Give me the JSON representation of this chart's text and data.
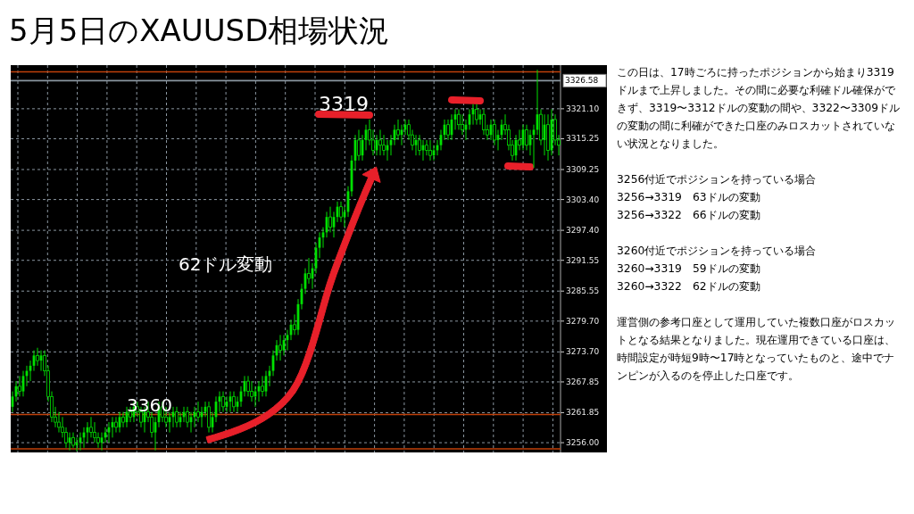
{
  "chart_data": {
    "type": "candlestick",
    "title": "5月5日のXAUUSD相場状況",
    "categories": [
      null,
      null,
      null,
      null,
      null,
      null,
      null,
      null,
      null,
      null,
      null,
      null,
      null,
      null,
      null,
      null,
      null,
      null,
      null,
      null,
      null,
      null,
      null,
      null,
      null,
      null,
      null,
      null,
      null,
      null,
      null,
      null,
      null,
      null,
      null,
      null,
      null,
      null,
      null,
      null,
      null,
      null,
      null,
      null,
      null,
      null,
      null,
      null,
      null,
      null,
      null,
      null,
      null,
      null,
      null,
      null,
      null,
      null,
      null,
      null,
      null,
      null,
      null,
      null,
      null,
      null,
      null,
      null,
      null,
      null,
      null,
      null,
      null,
      null,
      null,
      null,
      null,
      null,
      null,
      null,
      null,
      null,
      null,
      null,
      null,
      null,
      null,
      null,
      null,
      null,
      null,
      null,
      null,
      null,
      null,
      null,
      null,
      null,
      null,
      null,
      null,
      null,
      null,
      null,
      null,
      null,
      null,
      null,
      null,
      null,
      null,
      null,
      null,
      null,
      null,
      null,
      null,
      null,
      null,
      null,
      null,
      null,
      null,
      null,
      null,
      null,
      null,
      null,
      null,
      null,
      null,
      null,
      null,
      null,
      null,
      null,
      null,
      null,
      null,
      null,
      null,
      null,
      null,
      null,
      null,
      null,
      null,
      null,
      null,
      null,
      null,
      null,
      null,
      null
    ],
    "color": "#00e000",
    "ohlc": [
      [
        3263,
        3266,
        3262,
        3265
      ],
      [
        3265,
        3268,
        3264,
        3267
      ],
      [
        3267,
        3269,
        3265,
        3266
      ],
      [
        3266,
        3270,
        3265,
        3269
      ],
      [
        3269,
        3271,
        3267,
        3270
      ],
      [
        3270,
        3272,
        3268,
        3271
      ],
      [
        3271,
        3274,
        3270,
        3273
      ],
      [
        3273,
        3274.5,
        3271,
        3272
      ],
      [
        3272,
        3274,
        3270,
        3273
      ],
      [
        3273,
        3274,
        3269,
        3270
      ],
      [
        3270,
        3271,
        3264,
        3265
      ],
      [
        3265,
        3266,
        3260,
        3261
      ],
      [
        3261,
        3263,
        3259,
        3260
      ],
      [
        3260,
        3262,
        3258,
        3259
      ],
      [
        3259,
        3261,
        3257,
        3258
      ],
      [
        3258,
        3259,
        3255,
        3256
      ],
      [
        3256,
        3258,
        3254.5,
        3257
      ],
      [
        3257,
        3258,
        3255,
        3255.5
      ],
      [
        3255.5,
        3257,
        3254.3,
        3256
      ],
      [
        3256,
        3258,
        3254.5,
        3257
      ],
      [
        3257,
        3259,
        3255,
        3258
      ],
      [
        3258,
        3260,
        3256,
        3259
      ],
      [
        3259,
        3261,
        3257,
        3258
      ],
      [
        3258,
        3260,
        3256,
        3257
      ],
      [
        3257,
        3258,
        3255,
        3256
      ],
      [
        3256,
        3258,
        3254.5,
        3257
      ],
      [
        3257,
        3259,
        3256,
        3258
      ],
      [
        3258,
        3260,
        3256,
        3259
      ],
      [
        3259,
        3261,
        3257,
        3260
      ],
      [
        3260,
        3261,
        3258,
        3259
      ],
      [
        3259,
        3262,
        3258,
        3261
      ],
      [
        3261,
        3262,
        3259,
        3260
      ],
      [
        3260,
        3263,
        3259,
        3262
      ],
      [
        3262,
        3263,
        3260,
        3261
      ],
      [
        3261,
        3264,
        3260,
        3263
      ],
      [
        3263,
        3264,
        3261,
        3262
      ],
      [
        3262,
        3263,
        3259,
        3260
      ],
      [
        3260,
        3263,
        3258,
        3262
      ],
      [
        3262,
        3264,
        3260,
        3261
      ],
      [
        3261,
        3262,
        3257,
        3258
      ],
      [
        3258,
        3261,
        3254.5,
        3260
      ],
      [
        3260,
        3264,
        3259,
        3263
      ],
      [
        3263,
        3264,
        3260,
        3261
      ],
      [
        3261,
        3263,
        3259,
        3260
      ],
      [
        3260,
        3262,
        3258,
        3261
      ],
      [
        3261,
        3263,
        3259,
        3262
      ],
      [
        3262,
        3263,
        3259,
        3260
      ],
      [
        3260,
        3262,
        3259,
        3261
      ],
      [
        3261,
        3263,
        3260,
        3262
      ],
      [
        3262,
        3263,
        3259,
        3260
      ],
      [
        3260,
        3262,
        3258,
        3261
      ],
      [
        3261,
        3263,
        3259,
        3262
      ],
      [
        3262,
        3264,
        3260,
        3261
      ],
      [
        3261,
        3263,
        3259,
        3262
      ],
      [
        3262,
        3264,
        3261,
        3263
      ],
      [
        3263,
        3264,
        3258,
        3259
      ],
      [
        3259,
        3262,
        3258,
        3261
      ],
      [
        3261,
        3265,
        3260,
        3264
      ],
      [
        3264,
        3266,
        3262,
        3265
      ],
      [
        3265,
        3266,
        3262,
        3263
      ],
      [
        3263,
        3265,
        3262,
        3264
      ],
      [
        3264,
        3266,
        3262,
        3265
      ],
      [
        3265,
        3266,
        3262,
        3263
      ],
      [
        3263,
        3265,
        3262,
        3264
      ],
      [
        3264,
        3267,
        3263,
        3266
      ],
      [
        3266,
        3269,
        3265,
        3268
      ],
      [
        3268,
        3269,
        3265,
        3266
      ],
      [
        3266,
        3268,
        3264,
        3265
      ],
      [
        3265,
        3267,
        3263,
        3266
      ],
      [
        3266,
        3268,
        3264,
        3267
      ],
      [
        3267,
        3269,
        3265,
        3266
      ],
      [
        3266,
        3270,
        3265,
        3269
      ],
      [
        3269,
        3271,
        3267,
        3270
      ],
      [
        3270,
        3274,
        3269,
        3273
      ],
      [
        3273,
        3276,
        3272,
        3275
      ],
      [
        3275,
        3277,
        3272,
        3274
      ],
      [
        3274,
        3277,
        3273,
        3276
      ],
      [
        3276,
        3278,
        3274,
        3277
      ],
      [
        3277,
        3280,
        3276,
        3279
      ],
      [
        3279,
        3281,
        3277,
        3278
      ],
      [
        3278,
        3284,
        3277,
        3283
      ],
      [
        3283,
        3287,
        3282,
        3286
      ],
      [
        3286,
        3290,
        3285,
        3289
      ],
      [
        3289,
        3292,
        3287,
        3288
      ],
      [
        3288,
        3291,
        3286,
        3290
      ],
      [
        3290,
        3295,
        3289,
        3294
      ],
      [
        3294,
        3297,
        3292,
        3296
      ],
      [
        3296,
        3298,
        3294,
        3297
      ],
      [
        3297,
        3301,
        3296,
        3300
      ],
      [
        3300,
        3302,
        3297,
        3298
      ],
      [
        3298,
        3301,
        3296,
        3300
      ],
      [
        3300,
        3303,
        3299,
        3302
      ],
      [
        3302,
        3303,
        3299,
        3300
      ],
      [
        3300,
        3302,
        3298,
        3301
      ],
      [
        3301,
        3306,
        3300,
        3305
      ],
      [
        3305,
        3312,
        3304,
        3311
      ],
      [
        3311,
        3316,
        3309,
        3315
      ],
      [
        3315,
        3317,
        3311,
        3312
      ],
      [
        3312,
        3316,
        3311,
        3315
      ],
      [
        3315,
        3318,
        3313,
        3317
      ],
      [
        3317,
        3319,
        3314,
        3315
      ],
      [
        3315,
        3317,
        3312,
        3313
      ],
      [
        3313,
        3316,
        3312,
        3315
      ],
      [
        3315,
        3317,
        3312,
        3314
      ],
      [
        3314,
        3316,
        3312,
        3313
      ],
      [
        3313,
        3315,
        3311,
        3314
      ],
      [
        3314,
        3316,
        3312,
        3315
      ],
      [
        3315,
        3318,
        3314,
        3317
      ],
      [
        3317,
        3319,
        3315,
        3316
      ],
      [
        3316,
        3318,
        3314,
        3317
      ],
      [
        3317,
        3319,
        3316,
        3318
      ],
      [
        3318,
        3319,
        3315,
        3316
      ],
      [
        3316,
        3317,
        3313,
        3314
      ],
      [
        3314,
        3316,
        3312,
        3315
      ],
      [
        3315,
        3316,
        3312,
        3313
      ],
      [
        3313,
        3315,
        3311,
        3314
      ],
      [
        3314,
        3315,
        3312,
        3313
      ],
      [
        3313,
        3315,
        3311,
        3312
      ],
      [
        3312,
        3314,
        3311,
        3313
      ],
      [
        3313,
        3315,
        3312,
        3314
      ],
      [
        3314,
        3317,
        3313,
        3316
      ],
      [
        3316,
        3319,
        3315,
        3318
      ],
      [
        3318,
        3319,
        3315,
        3316
      ],
      [
        3316,
        3320,
        3315,
        3319
      ],
      [
        3319,
        3321,
        3317,
        3320
      ],
      [
        3320,
        3321,
        3317,
        3318
      ],
      [
        3318,
        3320,
        3316,
        3317
      ],
      [
        3317,
        3319,
        3315,
        3318
      ],
      [
        3318,
        3321,
        3317,
        3320
      ],
      [
        3320,
        3322,
        3318,
        3321
      ],
      [
        3321,
        3322,
        3318,
        3319
      ],
      [
        3319,
        3321,
        3318,
        3320
      ],
      [
        3320,
        3321,
        3316,
        3317
      ],
      [
        3317,
        3318,
        3315,
        3316
      ],
      [
        3316,
        3319,
        3315,
        3318
      ],
      [
        3318,
        3319,
        3314,
        3315
      ],
      [
        3315,
        3317,
        3313,
        3316
      ],
      [
        3316,
        3319,
        3315,
        3318
      ],
      [
        3318,
        3320,
        3316,
        3317
      ],
      [
        3317,
        3318,
        3313,
        3314
      ],
      [
        3314,
        3315,
        3311,
        3312
      ],
      [
        3312,
        3316,
        3311,
        3315
      ],
      [
        3315,
        3317,
        3313,
        3314
      ],
      [
        3314,
        3318,
        3313,
        3317
      ],
      [
        3317,
        3318,
        3313,
        3314
      ],
      [
        3314,
        3317,
        3312,
        3316
      ],
      [
        3316,
        3318,
        3309.6,
        3317
      ],
      [
        3317,
        3328.7,
        3316,
        3320
      ],
      [
        3320,
        3321,
        3314,
        3315
      ],
      [
        3315,
        3320,
        3312,
        3318
      ],
      [
        3318,
        3320,
        3311,
        3313
      ],
      [
        3313,
        3321,
        3312,
        3319
      ],
      [
        3319,
        3320,
        3314,
        3315
      ],
      [
        3315,
        3316,
        3312,
        3314
      ]
    ],
    "ylim": [
      3254.1,
      3329.6
    ],
    "yticks": [
      {
        "value": 3256,
        "label": "3256.00"
      },
      {
        "value": 3261.85,
        "label": "3261.85"
      },
      {
        "value": 3267.85,
        "label": "3267.85"
      },
      {
        "value": 3273.7,
        "label": "3273.70"
      },
      {
        "value": 3279.7,
        "label": "3279.70"
      },
      {
        "value": 3285.55,
        "label": "3285.55"
      },
      {
        "value": 3291.55,
        "label": "3291.55"
      },
      {
        "value": 3297.4,
        "label": "3297.40"
      },
      {
        "value": 3303.4,
        "label": "3303.40"
      },
      {
        "value": 3309.25,
        "label": "3309.25"
      },
      {
        "value": 3315.25,
        "label": "3315.25"
      },
      {
        "value": 3321.1,
        "label": "3321.10"
      }
    ],
    "ref_lines": [
      {
        "axis": "y",
        "value": 3328.3,
        "color": "#c0400a",
        "line_style": "solid"
      },
      {
        "axis": "y",
        "value": 3326.58,
        "label": "3326.58",
        "color": "#8a96a0",
        "line_style": "solid"
      },
      {
        "axis": "y",
        "value": 3261.5,
        "color": "#c0400a",
        "line_style": "solid"
      },
      {
        "axis": "y",
        "value": 3254.8,
        "color": "#c0400a",
        "line_style": "solid"
      }
    ],
    "grid": true,
    "tick_labels": "y",
    "annotations": [
      "3319",
      "62ドル変動",
      "3360",
      "この日は、17時ごろに持ったポジションから始まり3319ドルまで上昇しました。その間に必要な利確ドル確保ができず、3319〜3312ドルの変動の間や、3322〜3309ドルの変動の間に利確ができた口座のみロスカットされていない状況となりました。",
      "3256付近でポジションを持っている場合\n3256→3319　63ドルの変動\n3256→3322　66ドルの変動",
      "3260付近でポジションを持っている場合\n3260→3319　59ドルの変動\n3260→3322　62ドルの変動",
      "運営側の参考口座として運用していた複数口座がロスカットとなる結果となりました。現在運用できている口座は、時間設定が時短9時〜17時となっていたものと、途中でナンピンが入るのを停止した口座です。"
    ]
  }
}
